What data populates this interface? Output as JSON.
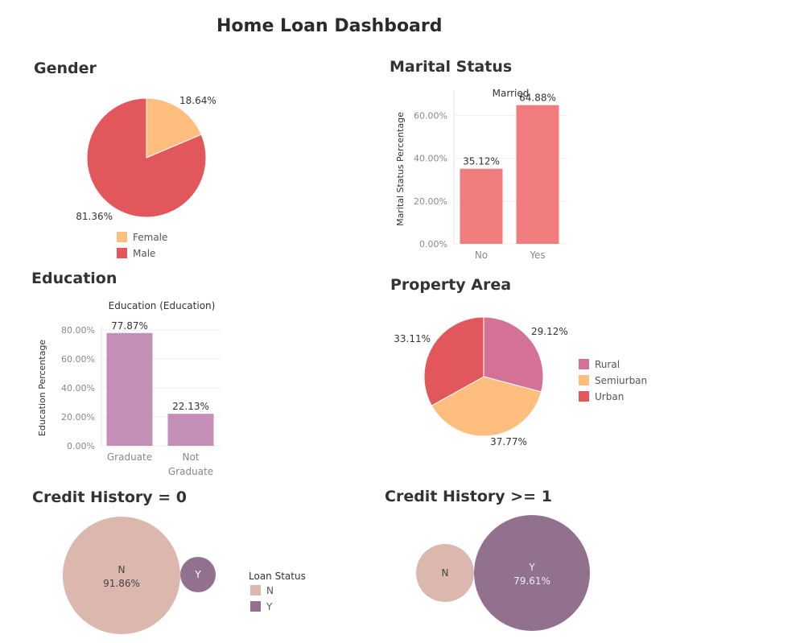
{
  "title": "Home Loan Dashboard",
  "colors": {
    "male": "#e1575c",
    "female": "#ffbe7d",
    "bar_marital": "#f07c7d",
    "bar_education": "#c38fb7",
    "rural": "#d37296",
    "semiurban": "#ffbe7d",
    "urban": "#e1575c",
    "loan_n": "#dbb7ae",
    "loan_y": "#92718f"
  },
  "sections": {
    "gender": "Gender",
    "marital": "Marital Status",
    "education": "Education",
    "property": "Property Area",
    "credit0": "Credit History = 0",
    "credit1": "Credit History >= 1"
  },
  "chart_data": [
    {
      "id": "gender",
      "type": "pie",
      "title": "Gender",
      "slices": [
        {
          "label": "Female",
          "value": 18.64,
          "display": "18.64%",
          "color": "#ffbe7d"
        },
        {
          "label": "Male",
          "value": 81.36,
          "display": "81.36%",
          "color": "#e1575c"
        }
      ],
      "legend": [
        "Female",
        "Male"
      ]
    },
    {
      "id": "marital",
      "type": "bar",
      "title": "Marital Status",
      "subtitle": "Married",
      "categories": [
        "No",
        "Yes"
      ],
      "values": [
        35.12,
        64.88
      ],
      "value_labels": [
        "35.12%",
        "64.88%"
      ],
      "ylabel": "Marital Status Percentage",
      "yticks": [
        0,
        20,
        40,
        60
      ],
      "ytick_labels": [
        "0.00%",
        "20.00%",
        "40.00%",
        "60.00%"
      ],
      "ylim": [
        0,
        70
      ],
      "color": "#f07c7d"
    },
    {
      "id": "education",
      "type": "bar",
      "title": "Education",
      "subtitle": "Education (Education)",
      "categories": [
        "Graduate",
        "Not Graduate"
      ],
      "category_lines": [
        [
          "Graduate"
        ],
        [
          "Not",
          "Graduate"
        ]
      ],
      "values": [
        77.87,
        22.13
      ],
      "value_labels": [
        "77.87%",
        "22.13%"
      ],
      "ylabel": "Education Percentage",
      "yticks": [
        0,
        20,
        40,
        60,
        80
      ],
      "ytick_labels": [
        "0.00%",
        "20.00%",
        "40.00%",
        "60.00%",
        "80.00%"
      ],
      "ylim": [
        0,
        80
      ],
      "color": "#c38fb7"
    },
    {
      "id": "property",
      "type": "pie",
      "title": "Property Area",
      "slices": [
        {
          "label": "Rural",
          "value": 29.12,
          "display": "29.12%",
          "color": "#d37296"
        },
        {
          "label": "Semiurban",
          "value": 37.77,
          "display": "37.77%",
          "color": "#ffbe7d"
        },
        {
          "label": "Urban",
          "value": 33.11,
          "display": "33.11%",
          "color": "#e1575c"
        }
      ],
      "legend": [
        "Rural",
        "Semiurban",
        "Urban"
      ]
    },
    {
      "id": "credit0",
      "type": "bubble",
      "title": "Credit History = 0",
      "items": [
        {
          "label": "N",
          "share": 91.86,
          "display": "91.86%",
          "color": "#dbb7ae"
        },
        {
          "label": "Y",
          "share": 8.14,
          "display": "",
          "color": "#92718f"
        }
      ],
      "legend_title": "Loan Status",
      "legend": [
        "N",
        "Y"
      ]
    },
    {
      "id": "credit1",
      "type": "bubble",
      "title": "Credit History >= 1",
      "items": [
        {
          "label": "N",
          "share": 20.39,
          "display": "",
          "color": "#dbb7ae"
        },
        {
          "label": "Y",
          "share": 79.61,
          "display": "79.61%",
          "color": "#92718f"
        }
      ]
    }
  ]
}
